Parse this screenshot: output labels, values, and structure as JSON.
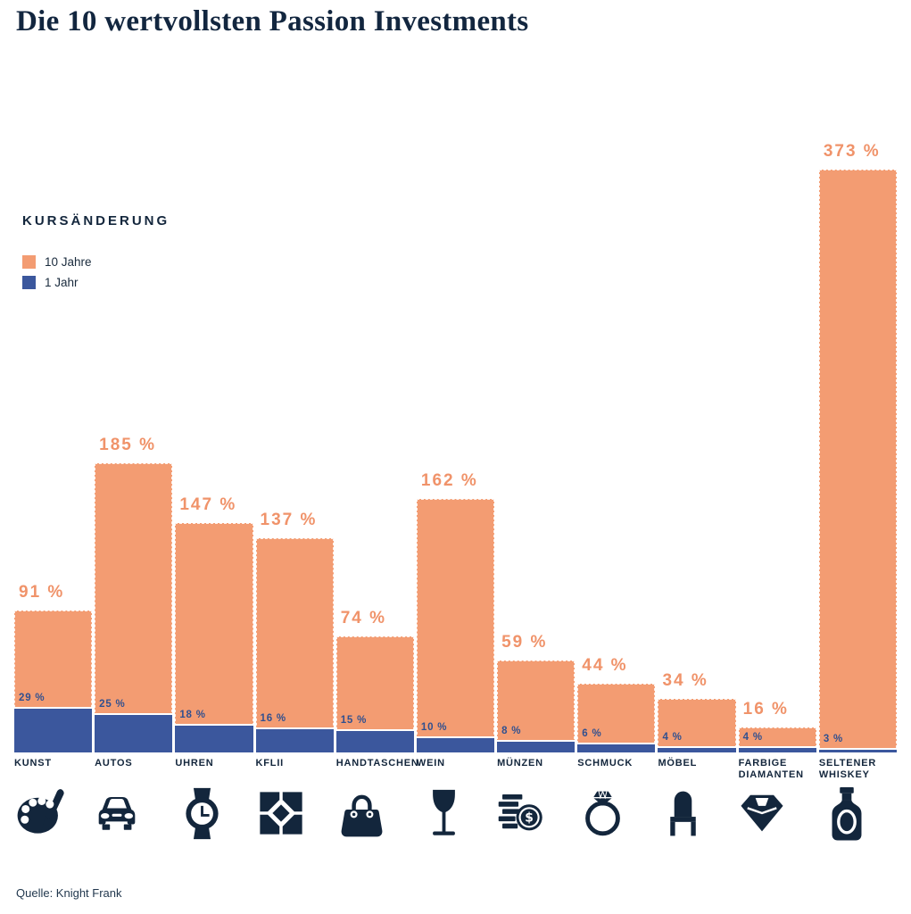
{
  "title": "Die 10 wertvollsten Passion Investments",
  "legend": {
    "title": "KURSÄNDERUNG",
    "items": [
      {
        "label": "10 Jahre",
        "color": "#F39C72"
      },
      {
        "label": "1 Jahr",
        "color": "#3B579D"
      }
    ]
  },
  "source": "Quelle: Knight Frank",
  "colors": {
    "orange_bar": "#F39C72",
    "orange_label": "#F0936A",
    "blue_bar": "#3B579D",
    "blue_label": "#31508F",
    "navy_text": "#13263C"
  },
  "chart_data": {
    "type": "bar",
    "title": "Die 10 wertvollsten Passion Investments",
    "categories": [
      "KUNST",
      "AUTOS",
      "UHREN",
      "KFLII",
      "HANDTASCHEN",
      "WEIN",
      "MÜNZEN",
      "SCHMUCK",
      "MÖBEL",
      "FARBIGE DIAMANTEN",
      "SELTENER WHISKEY"
    ],
    "icons": [
      "palette-icon",
      "car-icon",
      "watch-icon",
      "kflii-pattern-icon",
      "handbag-icon",
      "wine-glass-icon",
      "coins-icon",
      "ring-icon",
      "chair-icon",
      "diamond-icon",
      "whiskey-bottle-icon"
    ],
    "series": [
      {
        "name": "10 Jahre",
        "color": "#F39C72",
        "values": [
          91,
          185,
          147,
          137,
          74,
          162,
          59,
          44,
          34,
          16,
          373
        ]
      },
      {
        "name": "1 Jahr",
        "color": "#3B579D",
        "values": [
          29,
          25,
          18,
          16,
          15,
          10,
          8,
          6,
          4,
          4,
          3
        ]
      }
    ],
    "unit": "%",
    "label_format": "{v} %",
    "ylim": [
      0,
      373
    ],
    "grid": false,
    "axes_shown": false,
    "legend_position": "upper-left"
  }
}
